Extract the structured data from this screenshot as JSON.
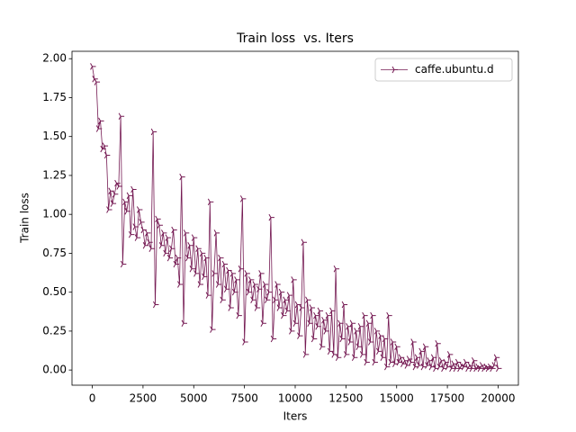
{
  "chart_data": {
    "type": "line",
    "title": "Train loss  vs. Iters",
    "xlabel": "Iters",
    "ylabel": "Train loss",
    "legend": "upper right",
    "x": [
      0,
      100,
      200,
      300,
      400,
      500,
      600,
      700,
      800,
      900,
      1000,
      1100,
      1200,
      1300,
      1400,
      1500,
      1600,
      1700,
      1800,
      1900,
      2000,
      2100,
      2200,
      2300,
      2400,
      2500,
      2600,
      2700,
      2800,
      2900,
      3000,
      3100,
      3200,
      3300,
      3400,
      3500,
      3600,
      3700,
      3800,
      3900,
      4000,
      4100,
      4200,
      4300,
      4400,
      4500,
      4600,
      4700,
      4800,
      4900,
      5000,
      5100,
      5200,
      5300,
      5400,
      5500,
      5600,
      5700,
      5800,
      5900,
      6000,
      6100,
      6200,
      6300,
      6400,
      6500,
      6600,
      6700,
      6800,
      6900,
      7000,
      7100,
      7200,
      7300,
      7400,
      7500,
      7600,
      7700,
      7800,
      7900,
      8000,
      8100,
      8200,
      8300,
      8400,
      8500,
      8600,
      8700,
      8800,
      8900,
      9000,
      9100,
      9200,
      9300,
      9400,
      9500,
      9600,
      9700,
      9800,
      9900,
      10000,
      10100,
      10200,
      10300,
      10400,
      10500,
      10600,
      10700,
      10800,
      10900,
      11000,
      11100,
      11200,
      11300,
      11400,
      11500,
      11600,
      11700,
      11800,
      11900,
      12000,
      12100,
      12200,
      12300,
      12400,
      12500,
      12600,
      12700,
      12800,
      12900,
      13000,
      13100,
      13200,
      13300,
      13400,
      13500,
      13600,
      13700,
      13800,
      13900,
      14000,
      14100,
      14200,
      14300,
      14400,
      14500,
      14600,
      14700,
      14800,
      14900,
      15000,
      15100,
      15200,
      15300,
      15400,
      15500,
      15600,
      15700,
      15800,
      15900,
      16000,
      16100,
      16200,
      16300,
      16400,
      16500,
      16600,
      16700,
      16800,
      16900,
      17000,
      17100,
      17200,
      17300,
      17400,
      17500,
      17600,
      17700,
      17800,
      17900,
      18000,
      18100,
      18200,
      18300,
      18400,
      18500,
      18600,
      18700,
      18800,
      18900,
      19000,
      19100,
      19200,
      19300,
      19400,
      19500,
      19600,
      19700,
      19800,
      19900,
      20000
    ],
    "series": [
      {
        "name": "caffe.ubuntu.d",
        "color": "#751a53",
        "values": [
          1.95,
          1.87,
          1.85,
          1.55,
          1.6,
          1.42,
          1.44,
          1.38,
          1.03,
          1.15,
          1.07,
          1.13,
          1.2,
          1.18,
          1.63,
          0.68,
          1.08,
          1.02,
          1.12,
          0.87,
          1.16,
          0.92,
          0.85,
          1.03,
          0.95,
          0.9,
          0.8,
          0.88,
          0.82,
          0.78,
          1.53,
          0.42,
          0.97,
          0.93,
          0.8,
          0.88,
          0.75,
          0.85,
          0.72,
          0.78,
          0.9,
          0.68,
          0.72,
          0.55,
          1.24,
          0.3,
          0.88,
          0.72,
          0.8,
          0.65,
          0.85,
          0.62,
          0.78,
          0.55,
          0.75,
          0.6,
          0.72,
          0.48,
          1.08,
          0.26,
          0.62,
          0.88,
          0.55,
          0.72,
          0.45,
          0.68,
          0.52,
          0.64,
          0.4,
          0.62,
          0.5,
          0.58,
          0.35,
          0.65,
          1.1,
          0.18,
          0.62,
          0.5,
          0.58,
          0.45,
          0.55,
          0.4,
          0.52,
          0.62,
          0.3,
          0.55,
          0.45,
          0.5,
          0.98,
          0.2,
          0.45,
          0.55,
          0.4,
          0.5,
          0.35,
          0.45,
          0.38,
          0.48,
          0.25,
          0.58,
          0.3,
          0.42,
          0.22,
          0.4,
          0.82,
          0.1,
          0.45,
          0.3,
          0.4,
          0.2,
          0.35,
          0.28,
          0.38,
          0.15,
          0.32,
          0.25,
          0.35,
          0.12,
          0.38,
          0.1,
          0.65,
          0.08,
          0.3,
          0.2,
          0.42,
          0.1,
          0.28,
          0.18,
          0.3,
          0.08,
          0.25,
          0.15,
          0.28,
          0.1,
          0.35,
          0.05,
          0.3,
          0.18,
          0.35,
          0.05,
          0.25,
          0.12,
          0.22,
          0.08,
          0.2,
          0.02,
          0.35,
          0.05,
          0.18,
          0.04,
          0.15,
          0.05,
          0.08,
          0.04,
          0.06,
          0.03,
          0.07,
          0.05,
          0.18,
          0.02,
          0.08,
          0.03,
          0.12,
          0.02,
          0.15,
          0.03,
          0.06,
          0.02,
          0.08,
          0.01,
          0.17,
          0.02,
          0.06,
          0.01,
          0.05,
          0.02,
          0.1,
          0.01,
          0.04,
          0.01,
          0.05,
          0.01,
          0.03,
          0.02,
          0.05,
          0.01,
          0.03,
          0.01,
          0.06,
          0.01,
          0.02,
          0.01,
          0.03,
          0.01,
          0.02,
          0.01,
          0.02,
          0.01,
          0.03,
          0.08,
          0.01
        ]
      }
    ],
    "xlim": [
      -1000,
      21000
    ],
    "xticks": [
      0,
      2500,
      5000,
      7500,
      10000,
      12500,
      15000,
      17500,
      20000
    ],
    "ylim": [
      -0.0975,
      2.0475
    ],
    "yticks": [
      {
        "value": 0,
        "label": "0.00"
      },
      {
        "value": 0.25,
        "label": "0.25"
      },
      {
        "value": 0.5,
        "label": "0.50"
      },
      {
        "value": 0.75,
        "label": "0.75"
      },
      {
        "value": 1,
        "label": "1.00"
      },
      {
        "value": 1.25,
        "label": "1.25"
      },
      {
        "value": 1.5,
        "label": "1.50"
      },
      {
        "value": 1.75,
        "label": "1.75"
      },
      {
        "value": 2,
        "label": "2.00"
      }
    ]
  }
}
